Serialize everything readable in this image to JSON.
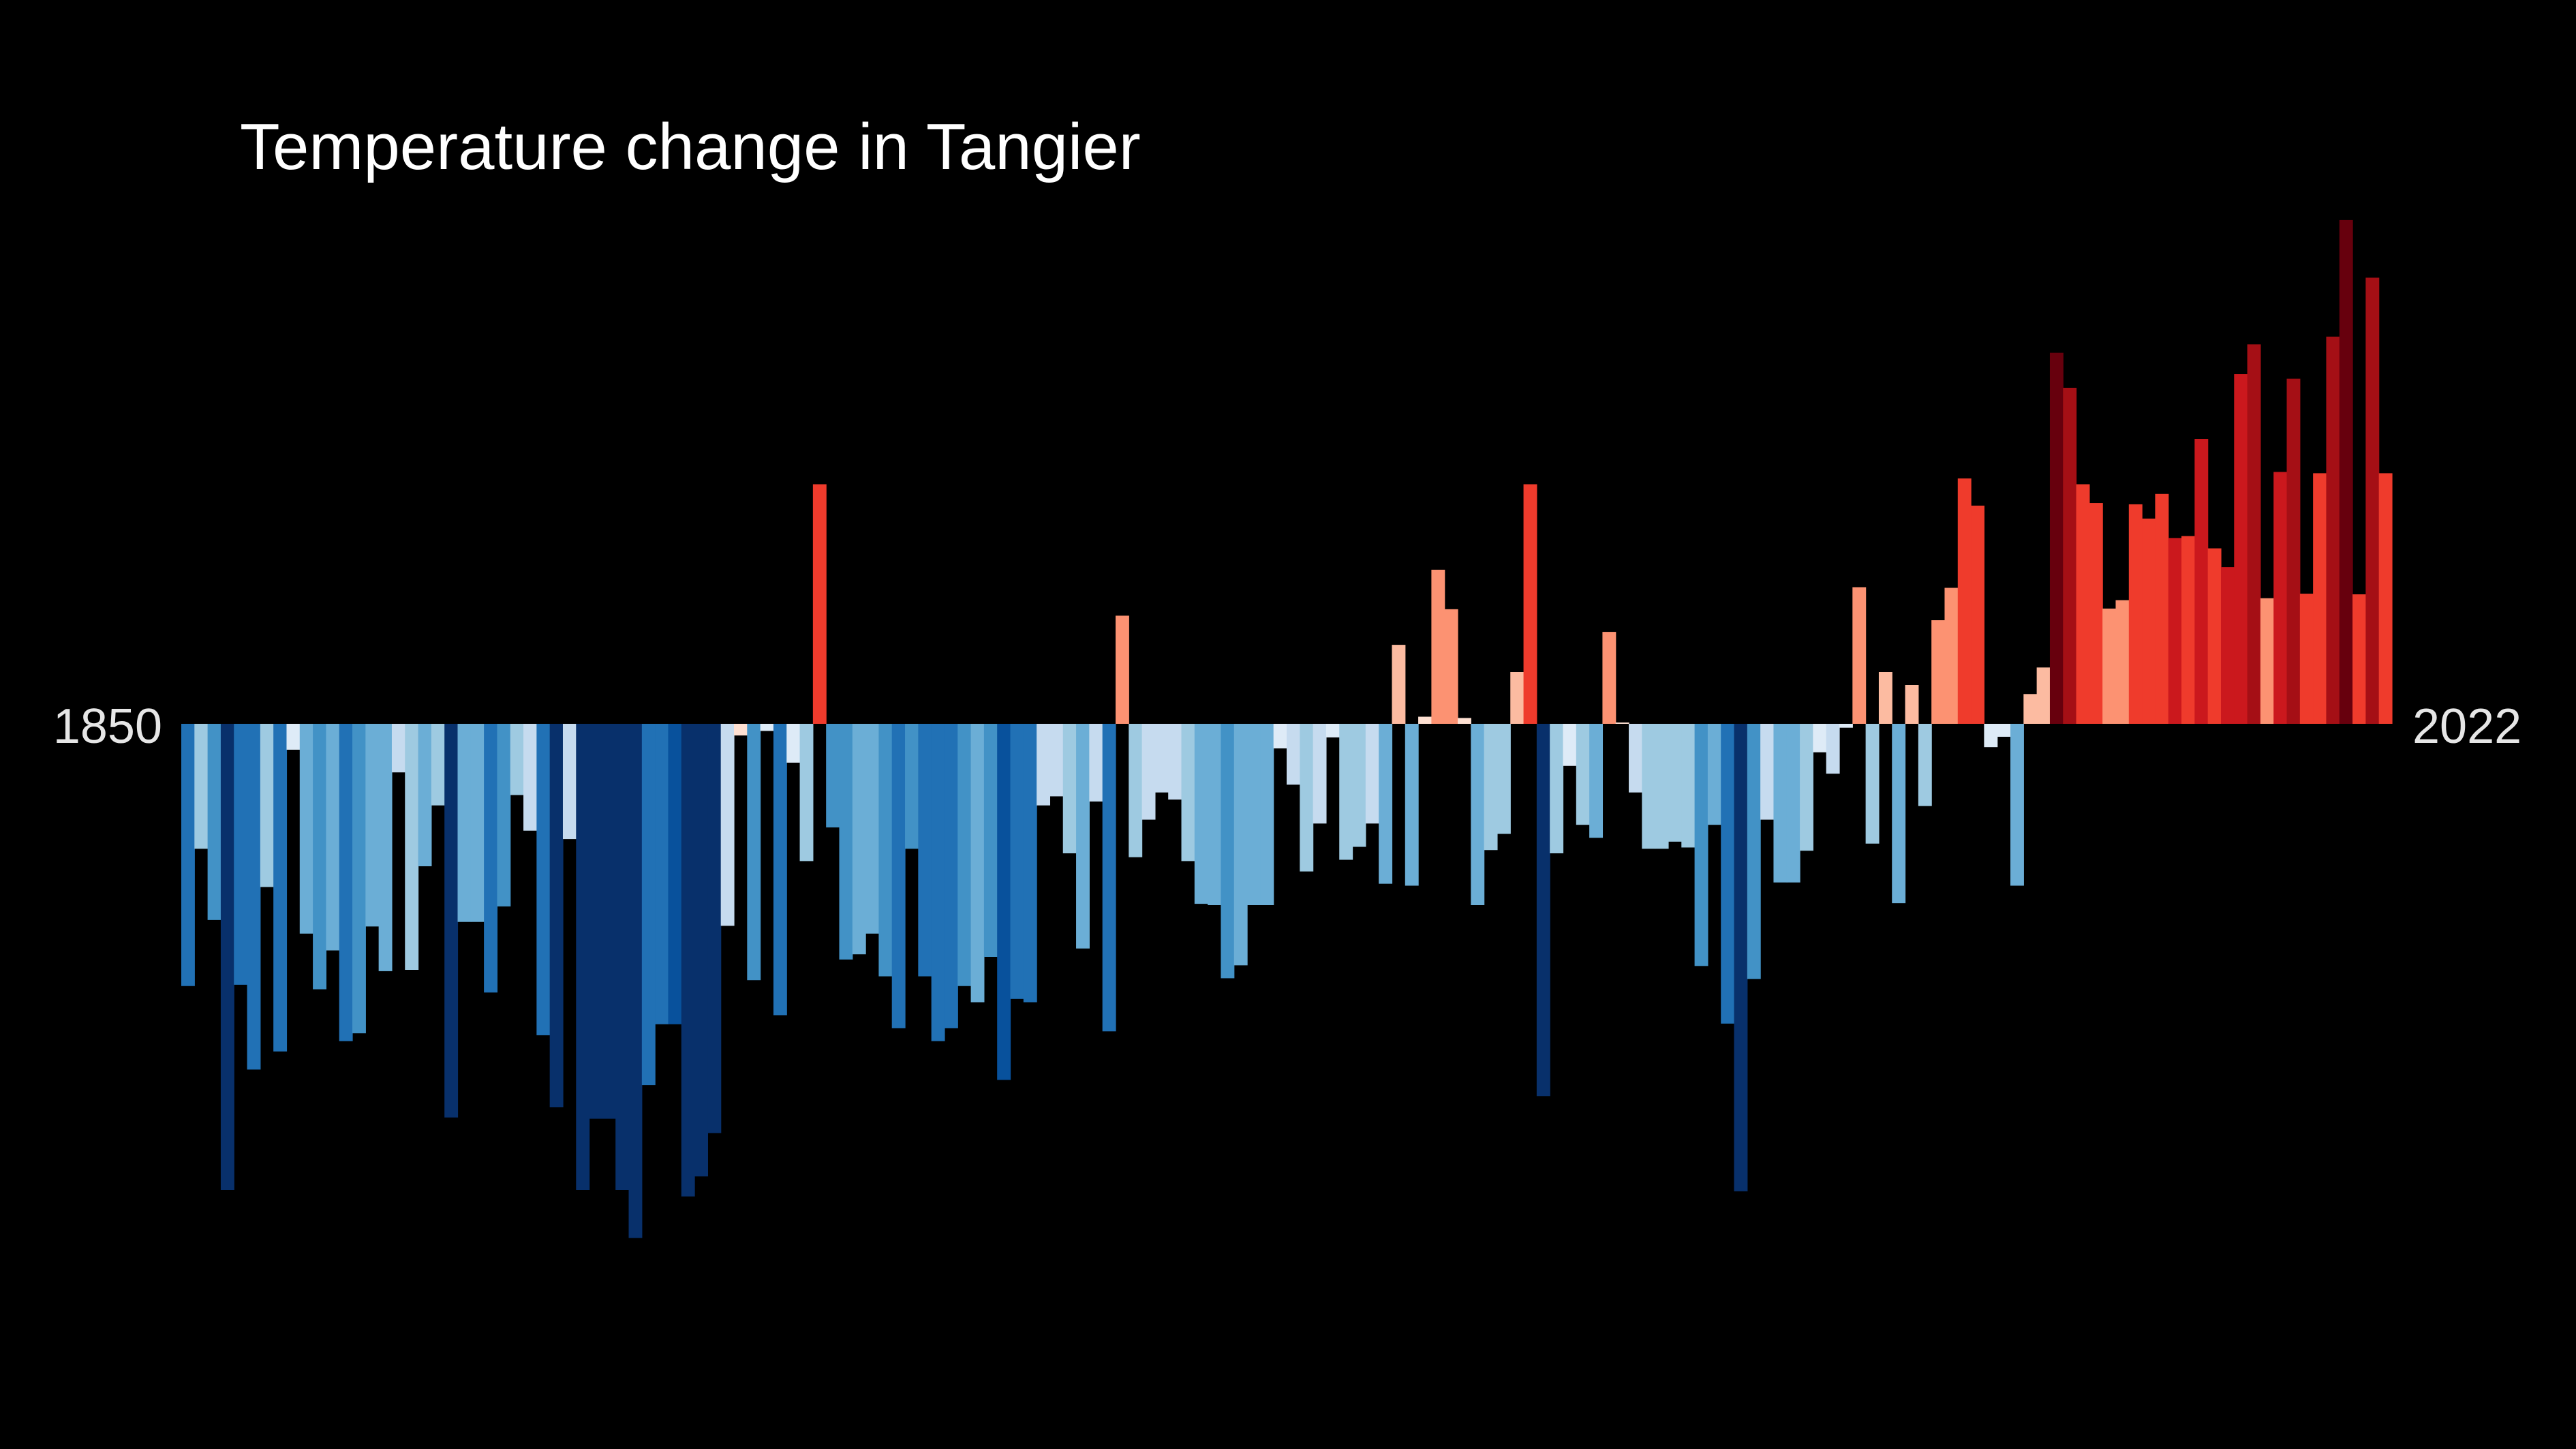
{
  "chart_data": {
    "type": "bar",
    "title": "Temperature change in Tangier",
    "start_year_label": "1850",
    "end_year_label": "2022",
    "x_start": 1850,
    "x_end": 2022,
    "ylim": [
      -0.8,
      0.88
    ],
    "grid": false,
    "legend": "none",
    "background": "#000000",
    "colormap": [
      "#08306b",
      "#08519c",
      "#2171b5",
      "#4292c6",
      "#6baed6",
      "#9ecae1",
      "#c6dbef",
      "#deebf7",
      "#fee0d2",
      "#fcbba1",
      "#fc9272",
      "#fb6a4a",
      "#ef3b2c",
      "#cb181d",
      "#a50f15",
      "#67000d"
    ],
    "values": [
      -0.405,
      -0.193,
      -0.303,
      -0.72,
      -0.403,
      -0.534,
      -0.252,
      -0.506,
      -0.04,
      -0.324,
      -0.41,
      -0.35,
      -0.49,
      -0.478,
      -0.313,
      -0.382,
      -0.075,
      -0.38,
      -0.22,
      -0.126,
      -0.608,
      -0.306,
      -0.306,
      -0.415,
      -0.282,
      -0.11,
      -0.165,
      -0.481,
      -0.592,
      -0.178,
      -0.72,
      -0.61,
      -0.61,
      -0.72,
      -0.794,
      -0.558,
      -0.464,
      -0.464,
      -0.73,
      -0.699,
      -0.632,
      -0.312,
      -0.018,
      -0.396,
      -0.011,
      -0.45,
      -0.06,
      -0.212,
      0.37,
      -0.16,
      -0.364,
      -0.356,
      -0.324,
      -0.39,
      -0.47,
      -0.193,
      -0.39,
      -0.49,
      -0.47,
      -0.405,
      -0.43,
      -0.36,
      -0.55,
      -0.425,
      -0.43,
      -0.126,
      -0.112,
      -0.2,
      -0.347,
      -0.12,
      -0.475,
      0.167,
      -0.206,
      -0.148,
      -0.106,
      -0.117,
      -0.212,
      -0.278,
      -0.28,
      -0.393,
      -0.373,
      -0.28,
      -0.28,
      -0.038,
      -0.094,
      -0.228,
      -0.154,
      -0.021,
      -0.21,
      -0.19,
      -0.154,
      -0.247,
      0.122,
      -0.25,
      0.011,
      0.238,
      0.177,
      0.009,
      -0.28,
      -0.195,
      -0.17,
      0.08,
      0.37,
      -0.575,
      -0.2,
      -0.065,
      -0.156,
      -0.176,
      0.142,
      0.002,
      -0.106,
      -0.193,
      -0.193,
      -0.182,
      -0.191,
      -0.374,
      -0.156,
      -0.463,
      -0.722,
      -0.394,
      -0.148,
      -0.245,
      -0.245,
      -0.196,
      -0.044,
      -0.077,
      -0.006,
      0.211,
      -0.185,
      0.08,
      -0.277,
      0.06,
      -0.127,
      0.16,
      0.21,
      0.379,
      0.337,
      -0.036,
      -0.02,
      -0.25,
      0.046,
      0.087,
      0.573,
      0.519,
      0.37,
      0.341,
      0.178,
      0.191,
      0.339,
      0.317,
      0.355,
      0.287,
      0.29,
      0.44,
      0.271,
      0.242,
      0.54,
      0.586,
      0.194,
      0.389,
      0.533,
      0.201,
      0.387,
      0.598,
      0.778,
      0.2,
      0.689,
      0.387
    ],
    "bar_colors": [
      "#2171b5",
      "#9ecae1",
      "#4292c6",
      "#08306b",
      "#2171b5",
      "#2171b5",
      "#9ecae1",
      "#2171b5",
      "#deebf7",
      "#6baed6",
      "#4292c6",
      "#6baed6",
      "#2171b5",
      "#4292c6",
      "#6baed6",
      "#6baed6",
      "#c6dbef",
      "#9ecae1",
      "#6baed6",
      "#9ecae1",
      "#08306b",
      "#6baed6",
      "#6baed6",
      "#2171b5",
      "#4292c6",
      "#9ecae1",
      "#c6dbef",
      "#2171b5",
      "#08306b",
      "#c6dbef",
      "#08306b",
      "#08306b",
      "#08306b",
      "#08306b",
      "#08306b",
      "#2171b5",
      "#2171b5",
      "#08519c",
      "#08306b",
      "#08306b",
      "#08306b",
      "#c6dbef",
      "#fee0d2",
      "#4292c6",
      "#deebf7",
      "#2171b5",
      "#deebf7",
      "#9ecae1",
      "#ef3b2c",
      "#4292c6",
      "#4292c6",
      "#6baed6",
      "#6baed6",
      "#4292c6",
      "#2171b5",
      "#4292c6",
      "#2171b5",
      "#2171b5",
      "#2171b5",
      "#4292c6",
      "#6baed6",
      "#4292c6",
      "#08519c",
      "#2171b5",
      "#2171b5",
      "#c6dbef",
      "#c6dbef",
      "#9ecae1",
      "#6baed6",
      "#c6dbef",
      "#2171b5",
      "#fc9272",
      "#9ecae1",
      "#c6dbef",
      "#c6dbef",
      "#c6dbef",
      "#9ecae1",
      "#6baed6",
      "#6baed6",
      "#4292c6",
      "#6baed6",
      "#6baed6",
      "#6baed6",
      "#deebf7",
      "#c6dbef",
      "#9ecae1",
      "#c6dbef",
      "#deebf7",
      "#9ecae1",
      "#9ecae1",
      "#c6dbef",
      "#6baed6",
      "#fcbba1",
      "#6baed6",
      "#fee0d2",
      "#fc9272",
      "#fc9272",
      "#fee0d2",
      "#6baed6",
      "#9ecae1",
      "#9ecae1",
      "#fcbba1",
      "#ef3b2c",
      "#08306b",
      "#9ecae1",
      "#deebf7",
      "#9ecae1",
      "#6baed6",
      "#fc9272",
      "#fee0d2",
      "#c6dbef",
      "#9ecae1",
      "#9ecae1",
      "#9ecae1",
      "#9ecae1",
      "#4292c6",
      "#6baed6",
      "#2171b5",
      "#08306b",
      "#4292c6",
      "#c6dbef",
      "#6baed6",
      "#6baed6",
      "#9ecae1",
      "#deebf7",
      "#c6dbef",
      "#deebf7",
      "#fc9272",
      "#9ecae1",
      "#fcbba1",
      "#6baed6",
      "#fcbba1",
      "#9ecae1",
      "#fc9272",
      "#fc9272",
      "#ef3b2c",
      "#ef3b2c",
      "#deebf7",
      "#deebf7",
      "#6baed6",
      "#fcbba1",
      "#fcbba1",
      "#67000d",
      "#a50f15",
      "#ef3b2c",
      "#ef3b2c",
      "#fc9272",
      "#fc9272",
      "#ef3b2c",
      "#ef3b2c",
      "#ef3b2c",
      "#cb181d",
      "#ef3b2c",
      "#cb181d",
      "#ef3b2c",
      "#cb181d",
      "#cb181d",
      "#a50f15",
      "#fc9272",
      "#cb181d",
      "#a50f15",
      "#ef3b2c",
      "#ef3b2c",
      "#a50f15",
      "#67000d",
      "#ef3b2c",
      "#a50f15",
      "#ef3b2c"
    ]
  }
}
